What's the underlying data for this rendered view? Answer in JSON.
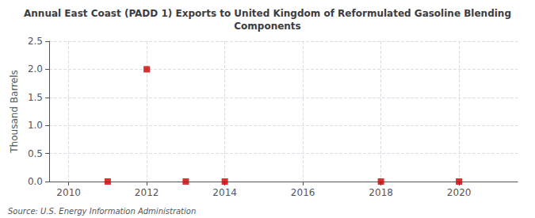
{
  "chart_data": {
    "type": "scatter",
    "title": "Annual East Coast (PADD 1) Exports to United Kingdom of Reformulated Gasoline Blending\nComponents",
    "ylabel": "Thousand Barrels",
    "annotations": [
      "Source: U.S. Energy Information Administration"
    ],
    "x": [
      2011,
      2012,
      2013,
      2014,
      2018,
      2020
    ],
    "values": [
      0.0,
      2.0,
      0.0,
      0.0,
      0.0,
      0.0
    ],
    "xlim": [
      2009.5,
      2021.5
    ],
    "ylim": [
      0.0,
      2.5
    ],
    "xticks": [
      2010,
      2012,
      2014,
      2016,
      2018,
      2020
    ],
    "yticks": [
      {
        "value": 0.0,
        "label": "0.0"
      },
      0.5,
      {
        "value": 1.0,
        "label": "1.0"
      },
      1.5,
      {
        "value": 2.0,
        "label": "2.0"
      },
      2.5
    ],
    "color": "#cc0000",
    "marker": "square",
    "grid": true
  }
}
